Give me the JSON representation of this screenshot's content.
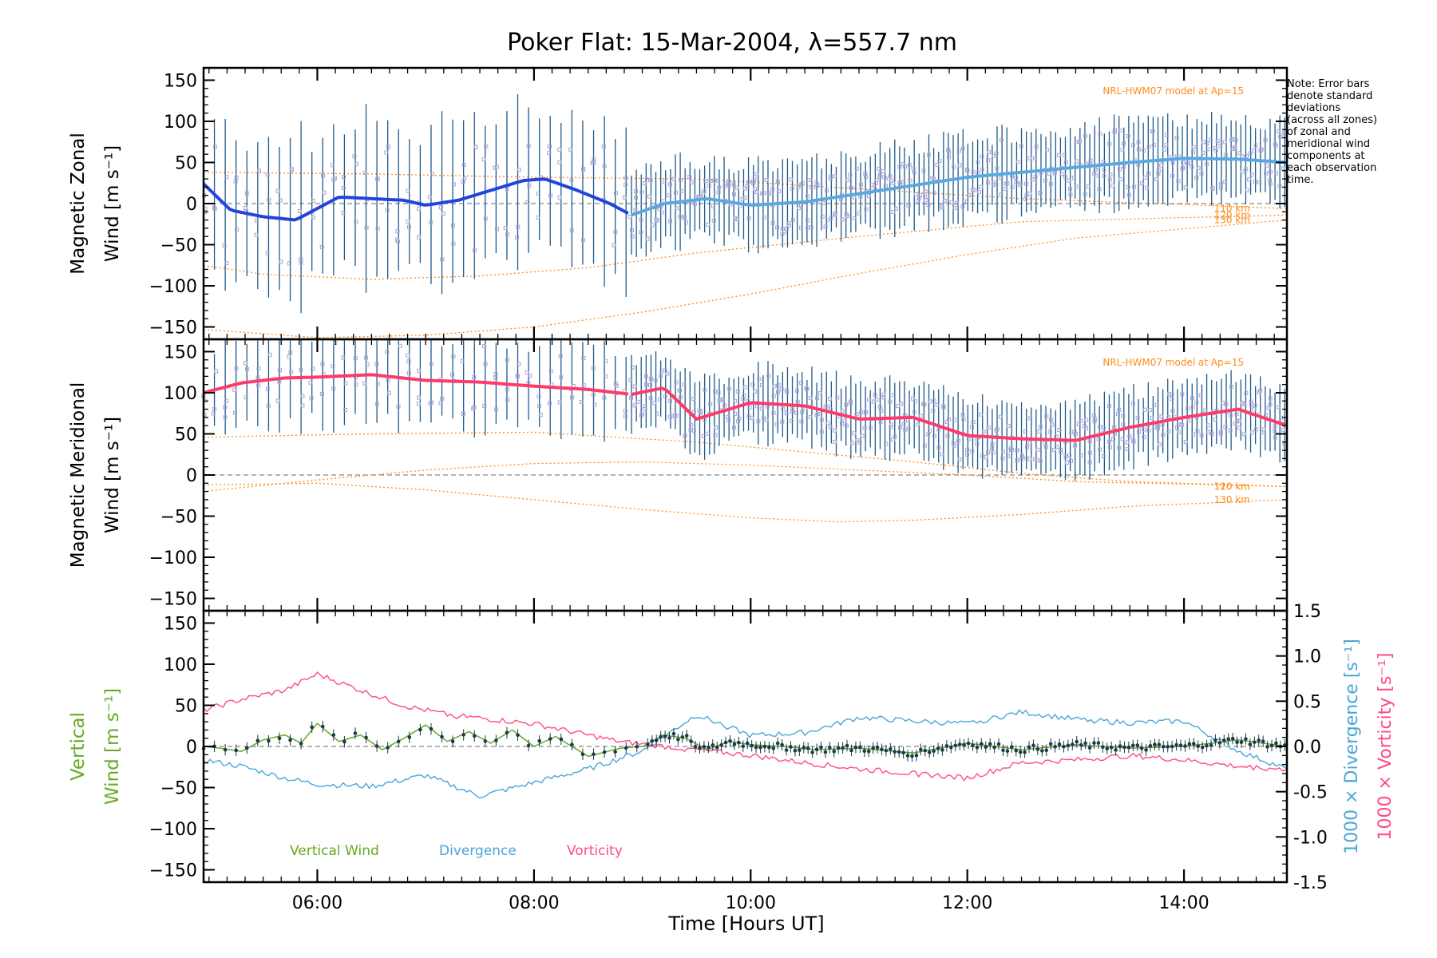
{
  "title": "Poker Flat: 15-Mar-2004, λ=557.7 nm",
  "note": [
    "Note: Error bars",
    "denote standard",
    "deviations",
    "(across all zones)",
    "of zonal and",
    "meridional wind",
    "components at",
    "each observation",
    "time."
  ],
  "colors": {
    "zonal": "#2244dd",
    "zonal2": "#5aa8e0",
    "meridional": "#ff3a6a",
    "model": "#ff8c1a",
    "errbar": "#1f5a8a",
    "vertical": "#66aa22",
    "divergence": "#4aa6d8",
    "vorticity": "#ff4a88",
    "grey": "#888888",
    "scatter": "#a8a4d8",
    "vert_pts": "#1b3a4a"
  },
  "chart_data": [
    {
      "type": "line",
      "id": "zonal",
      "ylabel": [
        "Magnetic Zonal",
        "Wind [m s⁻¹]"
      ],
      "ylim": [
        -165,
        165
      ],
      "yticks": [
        -150,
        -100,
        -50,
        0,
        50,
        100,
        150
      ],
      "xlim": [
        4.95,
        14.95
      ],
      "model_label": "NRL-HWM07 model at Ap=15",
      "model_lines": [
        {
          "label": "110 km",
          "x": [
            4.95,
            6.5,
            8.0,
            9.5,
            11.0,
            12.5,
            14.95
          ],
          "y": [
            38,
            36,
            32,
            30,
            18,
            6,
            -6
          ]
        },
        {
          "label": "120 km",
          "x": [
            4.95,
            5.5,
            6.5,
            7.5,
            8.5,
            9.5,
            11.0,
            12.5,
            14.95
          ],
          "y": [
            -75,
            -86,
            -92,
            -88,
            -78,
            -60,
            -40,
            -22,
            -14
          ]
        },
        {
          "label": "130 km",
          "x": [
            4.95,
            6.0,
            7.0,
            8.0,
            9.0,
            10.0,
            11.0,
            12.0,
            13.0,
            14.95
          ],
          "y": [
            -153,
            -163,
            -160,
            -150,
            -132,
            -110,
            -85,
            -62,
            -42,
            -20
          ]
        }
      ],
      "series": [
        {
          "name": "Zonal wind (early)",
          "x": [
            4.95,
            5.2,
            5.5,
            5.8,
            6.2,
            6.5,
            6.8,
            7.0,
            7.3,
            7.6,
            7.9,
            8.1,
            8.4,
            8.7,
            8.9
          ],
          "y": [
            24,
            -8,
            -16,
            -20,
            8,
            6,
            4,
            -2,
            4,
            16,
            28,
            30,
            16,
            0,
            -14
          ]
        },
        {
          "name": "Zonal wind (late)",
          "x": [
            8.9,
            9.2,
            9.6,
            10.0,
            10.5,
            11.0,
            11.5,
            12.0,
            12.5,
            13.0,
            13.5,
            14.0,
            14.5,
            14.95
          ],
          "y": [
            -14,
            0,
            6,
            -2,
            2,
            12,
            22,
            32,
            38,
            44,
            50,
            55,
            54,
            50
          ]
        }
      ]
    },
    {
      "type": "line",
      "id": "meridional",
      "ylabel": [
        "Magnetic Meridional",
        "Wind [m s⁻¹]"
      ],
      "ylim": [
        -165,
        165
      ],
      "yticks": [
        -150,
        -100,
        -50,
        0,
        50,
        100,
        150
      ],
      "xlim": [
        4.95,
        14.95
      ],
      "model_label": "NRL-HWM07 model at Ap=15",
      "model_lines": [
        {
          "label": "110 km",
          "x": [
            4.95,
            6.5,
            8.0,
            9.5,
            10.5,
            11.5,
            12.5,
            13.5,
            14.95
          ],
          "y": [
            46,
            50,
            52,
            40,
            28,
            16,
            2,
            -8,
            -14
          ]
        },
        {
          "label": "120 km",
          "x": [
            4.95,
            6.0,
            7.0,
            8.0,
            9.0,
            10.0,
            11.0,
            12.0,
            13.0,
            14.95
          ],
          "y": [
            -20,
            -6,
            6,
            14,
            16,
            12,
            6,
            0,
            -8,
            -14
          ]
        },
        {
          "label": "130 km",
          "x": [
            4.95,
            6.0,
            7.0,
            8.0,
            9.0,
            10.0,
            10.8,
            11.5,
            12.5,
            13.5,
            14.95
          ],
          "y": [
            -12,
            -10,
            -18,
            -30,
            -42,
            -52,
            -57,
            -55,
            -48,
            -38,
            -30
          ]
        }
      ],
      "series": [
        {
          "name": "Meridional wind (early)",
          "x": [
            4.95,
            5.3,
            5.7,
            6.0,
            6.5,
            7.0,
            7.5,
            8.0,
            8.5,
            8.9
          ],
          "y": [
            100,
            112,
            118,
            119,
            122,
            115,
            113,
            108,
            104,
            98
          ]
        },
        {
          "name": "Meridional wind (late)",
          "x": [
            8.9,
            9.2,
            9.5,
            10.0,
            10.5,
            11.0,
            11.5,
            12.0,
            12.5,
            13.0,
            13.5,
            14.0,
            14.5,
            14.95
          ],
          "y": [
            98,
            106,
            68,
            88,
            84,
            68,
            70,
            48,
            44,
            42,
            58,
            70,
            80,
            60
          ]
        }
      ]
    },
    {
      "type": "line",
      "id": "vertical",
      "ylabel": [
        "Vertical",
        "Wind [m s⁻¹]"
      ],
      "ylabel_right": [
        "1000 × Divergence [s⁻¹]",
        "1000 × Vorticity [s⁻¹]"
      ],
      "ylim": [
        -165,
        165
      ],
      "yticks": [
        -150,
        -100,
        -50,
        0,
        50,
        100,
        150
      ],
      "ylim_right": [
        -1.5,
        1.5
      ],
      "yticks_right": [
        -1.5,
        -1.0,
        -0.5,
        0.0,
        0.5,
        1.0,
        1.5
      ],
      "xlim": [
        4.95,
        14.95
      ],
      "xticks": [
        6,
        8,
        10,
        12,
        14
      ],
      "xticklabels": [
        "06:00",
        "08:00",
        "10:00",
        "12:00",
        "14:00"
      ],
      "xlabel": "Time [Hours UT]",
      "legend": [
        "Vertical Wind",
        "Divergence",
        "Vorticity"
      ],
      "series": [
        {
          "name": "Vertical Wind",
          "axis": "left",
          "x": [
            4.95,
            5.1,
            5.3,
            5.5,
            5.7,
            5.85,
            6.0,
            6.2,
            6.4,
            6.6,
            6.8,
            7.0,
            7.2,
            7.4,
            7.6,
            7.8,
            8.0,
            8.2,
            8.5,
            8.8,
            9.0,
            9.2,
            9.4,
            9.6,
            9.8,
            10.0,
            10.3,
            10.6,
            11.0,
            11.5,
            12.0,
            12.5,
            13.0,
            13.5,
            14.0,
            14.5,
            14.95
          ],
          "y": [
            0,
            -2,
            -6,
            8,
            14,
            4,
            28,
            6,
            14,
            -4,
            10,
            26,
            6,
            18,
            4,
            20,
            0,
            12,
            -12,
            -2,
            0,
            14,
            10,
            -4,
            6,
            2,
            0,
            -4,
            -2,
            -8,
            4,
            -4,
            2,
            -2,
            0,
            8,
            0
          ]
        },
        {
          "name": "Divergence",
          "axis": "right",
          "x": [
            4.95,
            5.3,
            5.7,
            6.0,
            6.5,
            7.0,
            7.5,
            8.0,
            8.5,
            9.0,
            9.5,
            10.0,
            10.5,
            11.0,
            11.5,
            12.0,
            12.5,
            13.0,
            13.5,
            14.0,
            14.5,
            14.95
          ],
          "y": [
            -0.15,
            -0.22,
            -0.35,
            -0.42,
            -0.44,
            -0.32,
            -0.55,
            -0.4,
            -0.25,
            -0.05,
            0.35,
            0.12,
            0.15,
            0.32,
            0.28,
            0.25,
            0.38,
            0.3,
            0.26,
            0.28,
            -0.05,
            -0.25
          ]
        },
        {
          "name": "Vorticity",
          "axis": "right",
          "x": [
            4.95,
            5.3,
            5.7,
            6.0,
            6.4,
            6.8,
            7.2,
            7.6,
            8.0,
            8.4,
            8.8,
            9.2,
            9.6,
            10.0,
            10.5,
            11.0,
            11.5,
            12.0,
            12.5,
            13.0,
            13.5,
            14.0,
            14.5,
            14.95
          ],
          "y": [
            0.4,
            0.52,
            0.62,
            0.8,
            0.62,
            0.45,
            0.35,
            0.3,
            0.25,
            0.15,
            0.05,
            0.0,
            -0.05,
            -0.1,
            -0.18,
            -0.25,
            -0.3,
            -0.35,
            -0.18,
            -0.15,
            -0.1,
            -0.15,
            -0.22,
            -0.25
          ]
        }
      ]
    }
  ]
}
